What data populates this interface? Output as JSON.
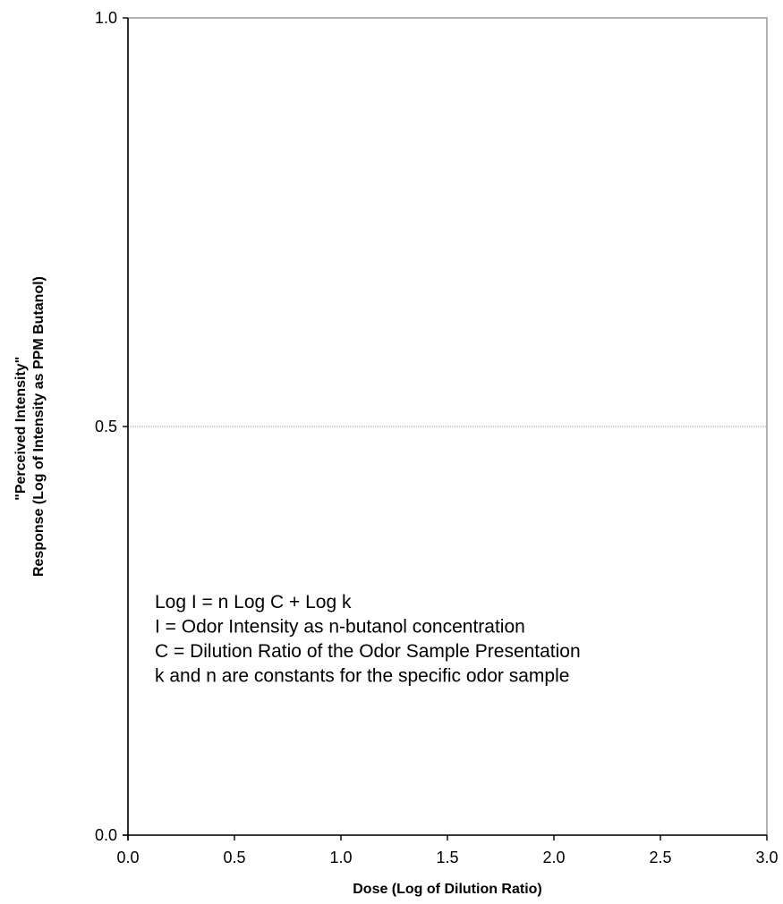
{
  "chart_data": {
    "type": "scatter",
    "title": "",
    "xlabel": "Dose (Log of Dilution Ratio)",
    "ylabel_lines": [
      "\"Perceived Intensity\"",
      "Response (Log of Intensity as PPM Butanol)"
    ],
    "xlim": [
      0.0,
      3.0
    ],
    "ylim": [
      0.0,
      1.0
    ],
    "x_ticks": [
      "0.0",
      "0.5",
      "1.0",
      "1.5",
      "2.0",
      "2.5",
      "3.0"
    ],
    "y_ticks": [
      "0.0",
      "0.5",
      "1.0"
    ],
    "grid": {
      "y_major": true,
      "x_major": false
    },
    "series": [],
    "annotation_lines": [
      "Log I = n Log C + Log k",
      "I = Odor Intensity as n-butanol concentration",
      "C = Dilution Ratio of the Odor Sample Presentation",
      "k and n are constants for the specific odor sample"
    ],
    "colors": {
      "axis": "#000000",
      "plot_border": "#808080",
      "gridline": "#808080"
    }
  }
}
